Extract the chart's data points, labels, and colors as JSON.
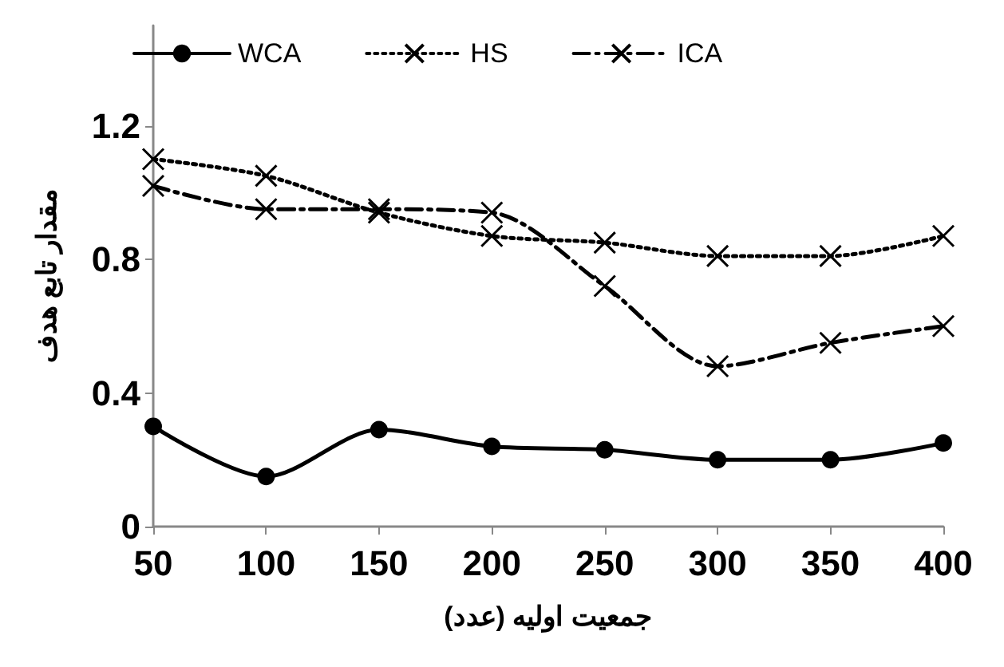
{
  "chart_data": {
    "type": "line",
    "xlabel": "جمعیت اولیه (عدد)",
    "ylabel": "مقدار تابع هدف",
    "x": [
      50,
      100,
      150,
      200,
      250,
      300,
      350,
      400
    ],
    "xlim": [
      50,
      400
    ],
    "xticks": [
      50,
      100,
      150,
      200,
      250,
      300,
      350,
      400
    ],
    "ylim": [
      0,
      1.5
    ],
    "yticks": [
      0,
      0.4,
      0.8,
      1.2
    ],
    "grid": false,
    "legend": "top",
    "series": [
      {
        "name": "WCA",
        "color": "#000000",
        "marker": "circle",
        "line_style": "solid",
        "values": [
          0.3,
          0.15,
          0.29,
          0.24,
          0.23,
          0.2,
          0.2,
          0.25
        ]
      },
      {
        "name": "HS",
        "color": "#000000",
        "marker": "cross",
        "line_style": "dotted",
        "values": [
          1.1,
          1.05,
          0.94,
          0.87,
          0.85,
          0.81,
          0.81,
          0.87
        ]
      },
      {
        "name": "ICA",
        "color": "#000000",
        "marker": "cross",
        "line_style": "dashed",
        "values": [
          1.02,
          0.95,
          0.95,
          0.94,
          0.72,
          0.48,
          0.55,
          0.6
        ]
      }
    ]
  }
}
